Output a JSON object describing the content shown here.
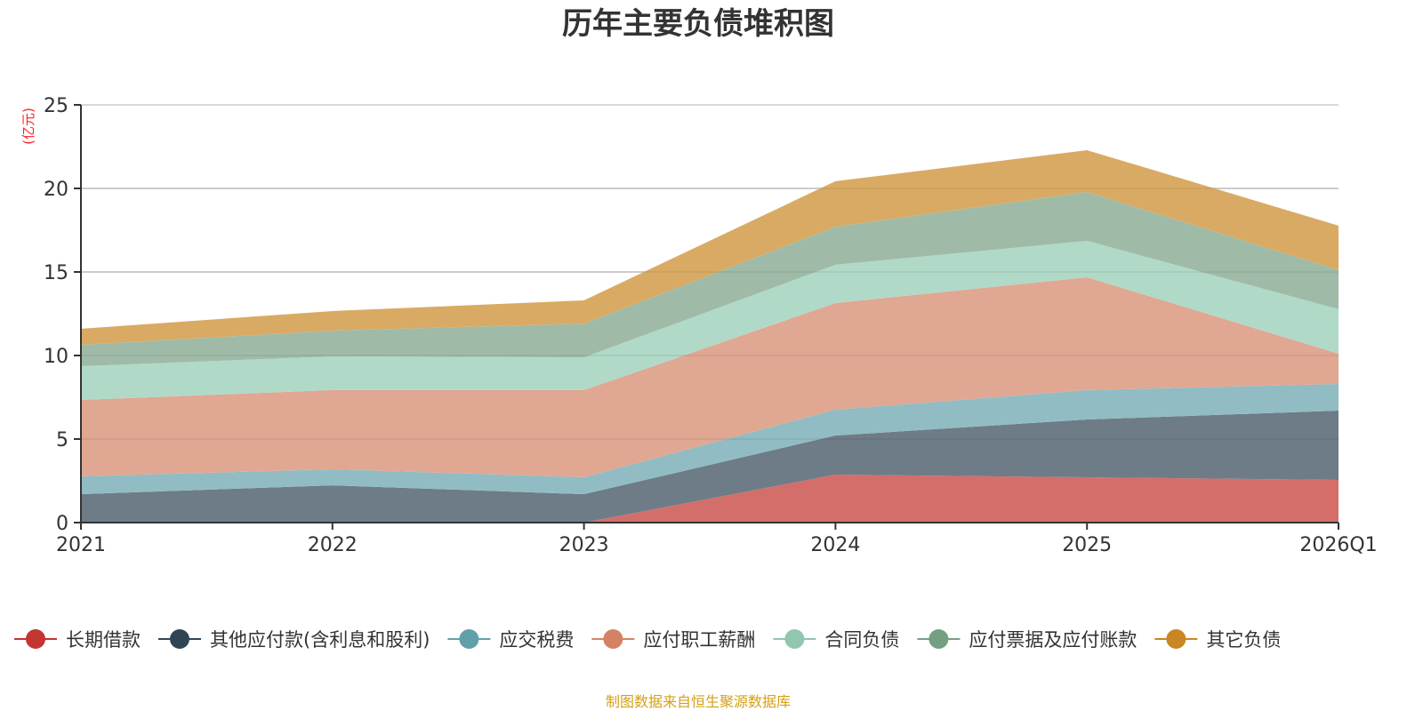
{
  "chart_data": {
    "type": "area",
    "stacked": true,
    "title": "历年主要负债堆积图",
    "xlabel": "",
    "ylabel": "(亿元)",
    "categories": [
      "2021",
      "2022",
      "2023",
      "2024",
      "2025",
      "2026Q1"
    ],
    "ylim": [
      0,
      25
    ],
    "yticks": [
      0,
      5,
      10,
      15,
      20,
      25
    ],
    "grid": true,
    "legend_position": "bottom",
    "series": [
      {
        "name": "长期借款",
        "color": "#c23531",
        "fill": "#d46e6b",
        "values": [
          0,
          0,
          0,
          2.87,
          2.71,
          2.55
        ]
      },
      {
        "name": "其他应付款(含利息和股利)",
        "color": "#2f4554",
        "fill": "#6e7c87",
        "values": [
          1.7,
          2.23,
          1.7,
          2.34,
          3.46,
          4.15
        ]
      },
      {
        "name": "应交税费",
        "color": "#61a0a8",
        "fill": "#91bcc3",
        "values": [
          1.07,
          0.96,
          1.01,
          1.55,
          1.76,
          1.6
        ]
      },
      {
        "name": "应付职工薪酬",
        "color": "#d48265",
        "fill": "#e0a793",
        "values": [
          4.57,
          4.74,
          5.22,
          6.38,
          6.75,
          1.81
        ]
      },
      {
        "name": "合同负债",
        "color": "#91c7ae",
        "fill": "#b1d9c7",
        "values": [
          2.02,
          2.02,
          1.96,
          2.29,
          2.18,
          2.66
        ]
      },
      {
        "name": "应付票据及应付账款",
        "color": "#749f83",
        "fill": "#9fbba8",
        "values": [
          1.28,
          1.54,
          2.02,
          2.28,
          2.93,
          2.34
        ]
      },
      {
        "name": "其它负债",
        "color": "#ca8622",
        "fill": "#d9aa63",
        "values": [
          0.96,
          1.17,
          1.39,
          2.72,
          2.5,
          2.66
        ]
      }
    ],
    "source_note": "制图数据来自恒生聚源数据库"
  }
}
